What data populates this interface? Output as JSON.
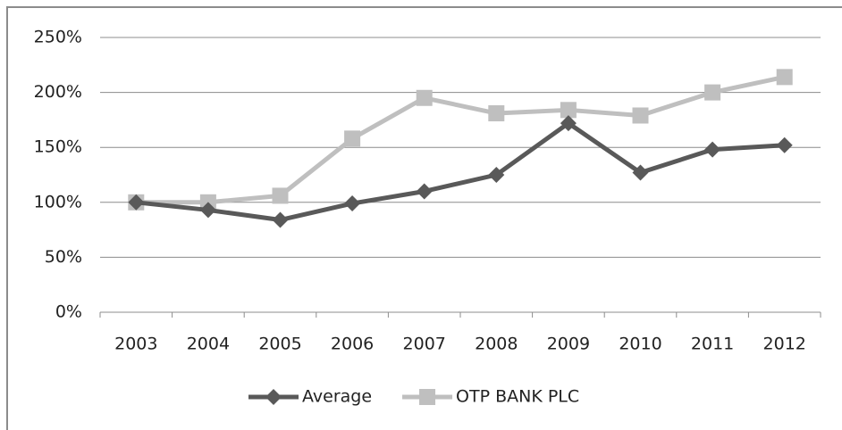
{
  "chart_data": {
    "type": "line",
    "categories": [
      "2003",
      "2004",
      "2005",
      "2006",
      "2007",
      "2008",
      "2009",
      "2010",
      "2011",
      "2012"
    ],
    "series": [
      {
        "name": "Average",
        "color": "#595959",
        "marker": "diamond",
        "values": [
          100,
          93,
          84,
          99,
          110,
          125,
          172,
          127,
          148,
          152
        ]
      },
      {
        "name": "OTP BANK PLC",
        "color": "#bfbfbf",
        "marker": "square",
        "values": [
          100,
          100,
          106,
          158,
          195,
          181,
          184,
          179,
          200,
          214
        ]
      }
    ],
    "ylim": [
      0,
      250
    ],
    "yticks": [
      {
        "value": 0,
        "label": "0%"
      },
      {
        "value": 50,
        "label": "50%"
      },
      {
        "value": 100,
        "label": "100%"
      },
      {
        "value": 150,
        "label": "150%"
      },
      {
        "value": 200,
        "label": "200%"
      },
      {
        "value": 250,
        "label": "250%"
      }
    ],
    "grid": true,
    "legend": "bottom"
  }
}
